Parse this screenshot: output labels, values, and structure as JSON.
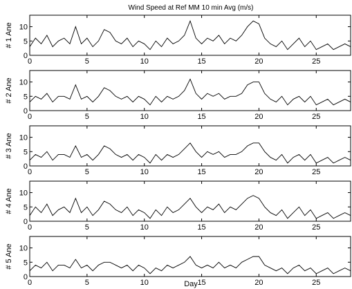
{
  "chart_data": {
    "type": "line",
    "title": "Wind Speed at Ref  MM  10 min Avg   (m/s)",
    "xlabel": "Day",
    "xlim": [
      0,
      28
    ],
    "ylim": [
      0,
      14
    ],
    "x_ticks": [
      0,
      5,
      10,
      15,
      20,
      25
    ],
    "y_ticks": [
      0,
      5,
      10
    ],
    "grid": false,
    "line_color": "#000000",
    "panels": [
      {
        "ylabel": "# 1 Ane",
        "series": [
          {
            "x": [
              0,
              0.5,
              1,
              1.5,
              2,
              2.5,
              3,
              3.5,
              4,
              4.5,
              5,
              5.5,
              6,
              6.5,
              7,
              7.5,
              8,
              8.5,
              9,
              9.5,
              10,
              10.5,
              11,
              11.5,
              12,
              12.5,
              13,
              13.5,
              14,
              14.5,
              15,
              15.5,
              16,
              16.5,
              17,
              17.5,
              18,
              18.5,
              19,
              19.5,
              20,
              20.5,
              21,
              21.5,
              22,
              22.5,
              23,
              23.5,
              24,
              24.5,
              25,
              25.5,
              26,
              26.5,
              27,
              27.5,
              28
            ],
            "values": [
              3,
              6,
              4,
              7,
              3,
              5,
              6,
              4,
              10,
              4,
              6,
              3,
              5,
              9,
              8,
              5,
              4,
              6,
              3,
              5,
              4,
              2,
              5,
              3,
              6,
              4,
              5,
              7,
              12,
              6,
              4,
              6,
              5,
              7,
              4,
              6,
              5,
              7,
              10,
              12,
              11,
              6,
              4,
              3,
              5,
              2,
              4,
              6,
              3,
              5,
              2,
              3,
              4,
              2,
              3,
              4,
              3
            ]
          }
        ]
      },
      {
        "ylabel": "# 2 Ane",
        "series": [
          {
            "x": [
              0,
              0.5,
              1,
              1.5,
              2,
              2.5,
              3,
              3.5,
              4,
              4.5,
              5,
              5.5,
              6,
              6.5,
              7,
              7.5,
              8,
              8.5,
              9,
              9.5,
              10,
              10.5,
              11,
              11.5,
              12,
              12.5,
              13,
              13.5,
              14,
              14.5,
              15,
              15.5,
              16,
              16.5,
              17,
              17.5,
              18,
              18.5,
              19,
              19.5,
              20,
              20.5,
              21,
              21.5,
              22,
              22.5,
              23,
              23.5,
              24,
              24.5,
              25,
              25.5,
              26,
              26.5,
              27,
              27.5,
              28
            ],
            "values": [
              3,
              5,
              4,
              6,
              3,
              5,
              5,
              4,
              9,
              4,
              5,
              3,
              5,
              8,
              7,
              5,
              4,
              5,
              3,
              5,
              4,
              2,
              5,
              3,
              5,
              4,
              5,
              7,
              11,
              6,
              4,
              6,
              5,
              6,
              4,
              5,
              5,
              6,
              9,
              10,
              10,
              6,
              4,
              3,
              5,
              2,
              4,
              5,
              3,
              5,
              2,
              3,
              4,
              2,
              3,
              4,
              3
            ]
          }
        ]
      },
      {
        "ylabel": "# 3 Ane",
        "series": [
          {
            "x": [
              0,
              0.5,
              1,
              1.5,
              2,
              2.5,
              3,
              3.5,
              4,
              4.5,
              5,
              5.5,
              6,
              6.5,
              7,
              7.5,
              8,
              8.5,
              9,
              9.5,
              10,
              10.5,
              11,
              11.5,
              12,
              12.5,
              13,
              13.5,
              14,
              14.5,
              15,
              15.5,
              16,
              16.5,
              17,
              17.5,
              18,
              18.5,
              19,
              19.5,
              20,
              20.5,
              21,
              21.5,
              22,
              22.5,
              23,
              23.5,
              24,
              24.5,
              25,
              25.5,
              26,
              26.5,
              27,
              27.5,
              28
            ],
            "values": [
              2,
              4,
              3,
              5,
              2,
              4,
              4,
              3,
              7,
              3,
              4,
              2,
              4,
              7,
              6,
              4,
              3,
              4,
              2,
              4,
              3,
              1,
              4,
              2,
              4,
              3,
              4,
              6,
              8,
              5,
              3,
              5,
              4,
              5,
              3,
              4,
              4,
              5,
              7,
              8,
              8,
              5,
              3,
              2,
              4,
              1,
              3,
              4,
              2,
              4,
              1,
              2,
              3,
              1,
              2,
              3,
              2
            ]
          }
        ]
      },
      {
        "ylabel": "# 4 Ane",
        "series": [
          {
            "x": [
              0,
              0.5,
              1,
              1.5,
              2,
              2.5,
              3,
              3.5,
              4,
              4.5,
              5,
              5.5,
              6,
              6.5,
              7,
              7.5,
              8,
              8.5,
              9,
              9.5,
              10,
              10.5,
              11,
              11.5,
              12,
              12.5,
              13,
              13.5,
              14,
              14.5,
              15,
              15.5,
              16,
              16.5,
              17,
              17.5,
              18,
              18.5,
              19,
              19.5,
              20,
              20.5,
              21,
              21.5,
              22,
              22.5,
              23,
              23.5,
              24,
              24.5,
              25,
              25.5,
              26,
              26.5,
              27,
              27.5,
              28
            ],
            "values": [
              2,
              5,
              3,
              6,
              2,
              4,
              5,
              3,
              8,
              3,
              5,
              2,
              4,
              7,
              6,
              4,
              3,
              5,
              2,
              4,
              3,
              1,
              4,
              2,
              5,
              3,
              4,
              6,
              8,
              5,
              3,
              5,
              4,
              6,
              3,
              5,
              4,
              6,
              8,
              9,
              8,
              5,
              3,
              2,
              4,
              1,
              3,
              5,
              2,
              4,
              1,
              2,
              3,
              1,
              2,
              3,
              2
            ]
          }
        ]
      },
      {
        "ylabel": "# 5 Ane",
        "series": [
          {
            "x": [
              0,
              0.5,
              1,
              1.5,
              2,
              2.5,
              3,
              3.5,
              4,
              4.5,
              5,
              5.5,
              6,
              6.5,
              7,
              7.5,
              8,
              8.5,
              9,
              9.5,
              10,
              10.5,
              11,
              11.5,
              12,
              12.5,
              13,
              13.5,
              14,
              14.5,
              15,
              15.5,
              16,
              16.5,
              17,
              17.5,
              18,
              18.5,
              19,
              19.5,
              20,
              20.5,
              21,
              21.5,
              22,
              22.5,
              23,
              23.5,
              24,
              24.5,
              25,
              25.5,
              26,
              26.5,
              27,
              27.5,
              28
            ],
            "values": [
              2,
              4,
              3,
              5,
              2,
              4,
              4,
              3,
              6,
              3,
              4,
              2,
              4,
              5,
              5,
              4,
              3,
              4,
              2,
              4,
              3,
              1,
              3,
              2,
              4,
              3,
              4,
              5,
              7,
              4,
              3,
              4,
              3,
              5,
              3,
              4,
              3,
              5,
              6,
              7,
              7,
              4,
              3,
              2,
              3,
              1,
              3,
              4,
              2,
              3,
              1,
              2,
              3,
              1,
              2,
              3,
              2
            ]
          }
        ]
      }
    ]
  }
}
